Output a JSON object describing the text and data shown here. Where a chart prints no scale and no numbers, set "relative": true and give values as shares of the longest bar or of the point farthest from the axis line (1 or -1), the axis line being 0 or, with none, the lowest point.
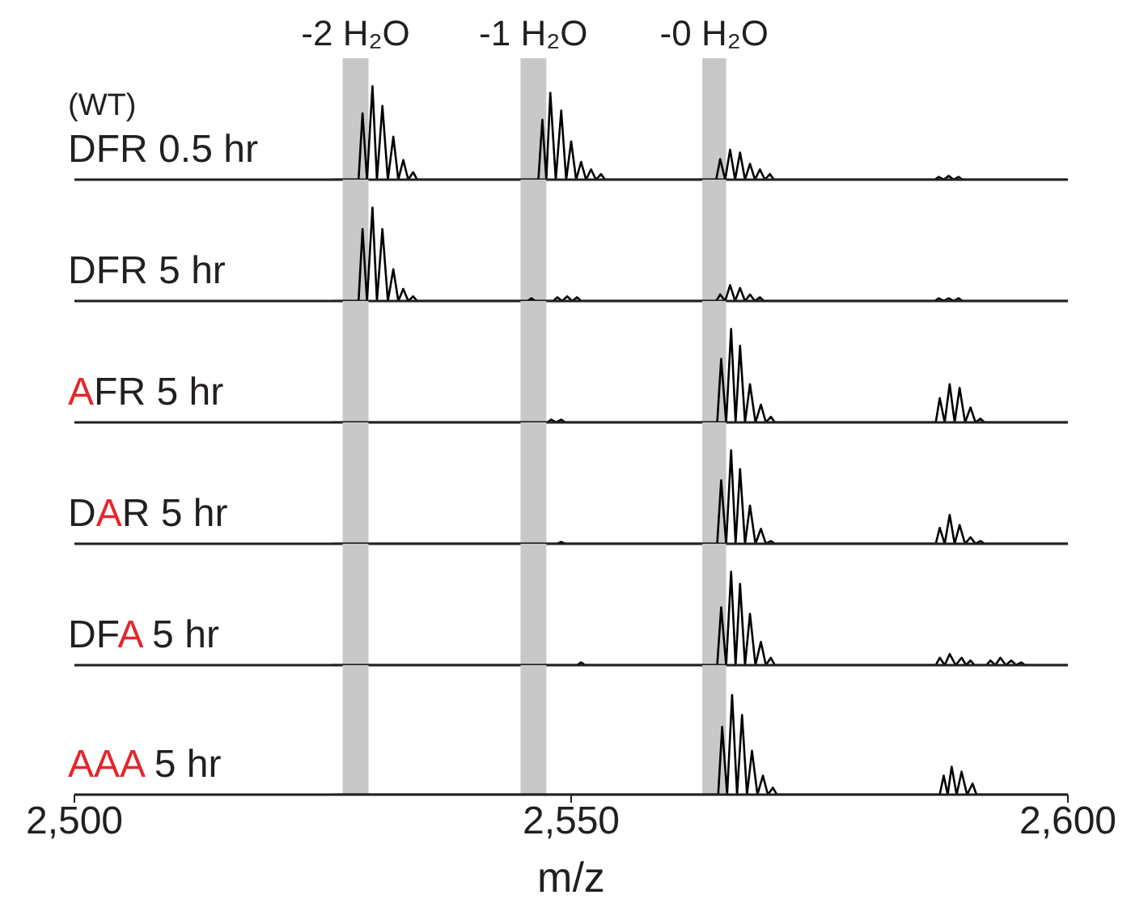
{
  "chart_data": [
    {
      "type": "line",
      "title": "DFR 0.5 hr",
      "annotations": [
        "(WT)"
      ],
      "relative": true,
      "xlim": [
        2500,
        2600
      ],
      "xticks": [
        {
          "value": 2500,
          "label": null
        },
        {
          "value": 2550,
          "label": null
        },
        {
          "value": 2600,
          "label": null
        }
      ],
      "tick_labels": false,
      "bands": [
        {
          "axis": "x",
          "from": 2527,
          "to": 2529.6,
          "label": "-2 H₂O",
          "color": "#c8c8c8"
        },
        {
          "axis": "x",
          "from": 2544.9,
          "to": 2547.5,
          "label": "-1 H₂O",
          "color": "#c8c8c8"
        },
        {
          "axis": "x",
          "from": 2563.2,
          "to": 2565.6,
          "label": "-0 H₂O",
          "color": "#c8c8c8"
        }
      ],
      "series": [
        {
          "color": "#000000",
          "x": [
            2526,
            2528.6,
            2529,
            2529.45,
            2530,
            2530.45,
            2531,
            2531.55,
            2532.1,
            2532.6,
            2533.1,
            2533.6,
            2534.1,
            2534.5,
            2546.7,
            2547.1,
            2547.5,
            2547.9,
            2548.45,
            2549,
            2549.5,
            2550,
            2550.5,
            2551,
            2551.5,
            2552,
            2552.5,
            2553,
            2553.4,
            2564.6,
            2565,
            2565.5,
            2566,
            2566.5,
            2567,
            2567.5,
            2568,
            2568.5,
            2569,
            2569.5,
            2570,
            2570.4,
            2586.6,
            2587,
            2587.5,
            2588,
            2588.5,
            2589,
            2589.4,
            2600
          ],
          "values": [
            0,
            0,
            0.71,
            0,
            1,
            0,
            0.79,
            0,
            0.46,
            0,
            0.21,
            0,
            0.08,
            0,
            0,
            0.64,
            0,
            0.93,
            0,
            0.74,
            0,
            0.41,
            0,
            0.19,
            0,
            0.11,
            0,
            0.06,
            0,
            0,
            0.22,
            0,
            0.32,
            0,
            0.29,
            0,
            0.17,
            0,
            0.11,
            0,
            0.06,
            0,
            0,
            0.03,
            0,
            0.04,
            0,
            0.03,
            0,
            0
          ]
        }
      ]
    },
    {
      "type": "line",
      "title": "DFR 5 hr",
      "relative": true,
      "xlim": [
        2500,
        2600
      ],
      "xticks": [
        {
          "value": 2500,
          "label": null
        },
        {
          "value": 2550,
          "label": null
        },
        {
          "value": 2600,
          "label": null
        }
      ],
      "tick_labels": false,
      "bands": [
        {
          "axis": "x",
          "from": 2527,
          "to": 2529.6,
          "color": "#c8c8c8"
        },
        {
          "axis": "x",
          "from": 2544.9,
          "to": 2547.5,
          "color": "#c8c8c8"
        },
        {
          "axis": "x",
          "from": 2563.2,
          "to": 2565.6,
          "color": "#c8c8c8"
        }
      ],
      "series": [
        {
          "color": "#000000",
          "x": [
            2526,
            2528.6,
            2529,
            2529.45,
            2530,
            2530.45,
            2531,
            2531.55,
            2532.1,
            2532.6,
            2533.1,
            2533.6,
            2534.1,
            2534.5,
            2545.6,
            2546,
            2546.4,
            2548.2,
            2548.6,
            2549.1,
            2549.6,
            2550.1,
            2550.6,
            2551,
            2564.6,
            2565,
            2565.5,
            2566,
            2566.5,
            2567,
            2567.5,
            2568,
            2568.5,
            2569,
            2569.4,
            2586.6,
            2587,
            2587.5,
            2588,
            2588.5,
            2589,
            2589.4,
            2600
          ],
          "values": [
            0,
            0,
            0.77,
            0,
            1,
            0,
            0.77,
            0,
            0.34,
            0,
            0.13,
            0,
            0.05,
            0,
            0,
            0.03,
            0,
            0,
            0.04,
            0,
            0.05,
            0,
            0.04,
            0,
            0,
            0.07,
            0,
            0.17,
            0,
            0.14,
            0,
            0.07,
            0,
            0.04,
            0,
            0,
            0.03,
            0,
            0.03,
            0,
            0.03,
            0,
            0
          ]
        }
      ]
    },
    {
      "type": "line",
      "title": "AFR 5 hr",
      "relative": true,
      "xlim": [
        2500,
        2600
      ],
      "xticks": [
        {
          "value": 2500,
          "label": null
        },
        {
          "value": 2550,
          "label": null
        },
        {
          "value": 2600,
          "label": null
        }
      ],
      "tick_labels": false,
      "bands": [
        {
          "axis": "x",
          "from": 2527,
          "to": 2529.6,
          "color": "#c8c8c8"
        },
        {
          "axis": "x",
          "from": 2544.9,
          "to": 2547.5,
          "color": "#c8c8c8"
        },
        {
          "axis": "x",
          "from": 2563.2,
          "to": 2565.6,
          "color": "#c8c8c8"
        }
      ],
      "series": [
        {
          "color": "#000000",
          "x": [
            2526,
            2547.6,
            2548,
            2548.5,
            2549,
            2549.4,
            2564.7,
            2565.1,
            2565.6,
            2566.1,
            2566.55,
            2567,
            2567.5,
            2568,
            2568.55,
            2569.1,
            2569.6,
            2570.1,
            2570.5,
            2586.7,
            2587.1,
            2587.6,
            2588.1,
            2588.6,
            2589.1,
            2589.65,
            2590.2,
            2590.7,
            2591.2,
            2591.6,
            2600
          ],
          "values": [
            0,
            0,
            0.03,
            0,
            0.03,
            0,
            0,
            0.68,
            0,
            1,
            0,
            0.82,
            0,
            0.41,
            0,
            0.19,
            0,
            0.06,
            0,
            0,
            0.26,
            0,
            0.41,
            0,
            0.37,
            0,
            0.16,
            0,
            0.04,
            0,
            0
          ]
        }
      ]
    },
    {
      "type": "line",
      "title": "DAR 5 hr",
      "relative": true,
      "xlim": [
        2500,
        2600
      ],
      "xticks": [
        {
          "value": 2500,
          "label": null
        },
        {
          "value": 2550,
          "label": null
        },
        {
          "value": 2600,
          "label": null
        }
      ],
      "tick_labels": false,
      "bands": [
        {
          "axis": "x",
          "from": 2527,
          "to": 2529.6,
          "color": "#c8c8c8"
        },
        {
          "axis": "x",
          "from": 2544.9,
          "to": 2547.5,
          "color": "#c8c8c8"
        },
        {
          "axis": "x",
          "from": 2563.2,
          "to": 2565.6,
          "color": "#c8c8c8"
        }
      ],
      "series": [
        {
          "color": "#000000",
          "x": [
            2526,
            2548.6,
            2549,
            2549.4,
            2564.7,
            2565.1,
            2565.6,
            2566.1,
            2566.55,
            2567,
            2567.5,
            2568,
            2568.55,
            2569.1,
            2569.6,
            2570.1,
            2570.5,
            2586.7,
            2587.1,
            2587.6,
            2588.1,
            2588.6,
            2589.1,
            2589.65,
            2590.2,
            2590.7,
            2591.2,
            2591.6,
            2600
          ],
          "values": [
            0,
            0,
            0.02,
            0,
            0,
            0.68,
            0,
            1,
            0,
            0.8,
            0,
            0.41,
            0,
            0.16,
            0,
            0.03,
            0,
            0,
            0.17,
            0,
            0.31,
            0,
            0.2,
            0,
            0.07,
            0,
            0.03,
            0,
            0
          ]
        }
      ]
    },
    {
      "type": "line",
      "title": "DFA 5 hr",
      "relative": true,
      "xlim": [
        2500,
        2600
      ],
      "xticks": [
        {
          "value": 2500,
          "label": null
        },
        {
          "value": 2550,
          "label": null
        },
        {
          "value": 2600,
          "label": null
        }
      ],
      "tick_labels": false,
      "bands": [
        {
          "axis": "x",
          "from": 2527,
          "to": 2529.6,
          "color": "#c8c8c8"
        },
        {
          "axis": "x",
          "from": 2544.9,
          "to": 2547.5,
          "color": "#c8c8c8"
        },
        {
          "axis": "x",
          "from": 2563.2,
          "to": 2565.6,
          "color": "#c8c8c8"
        }
      ],
      "series": [
        {
          "color": "#000000",
          "x": [
            2526,
            2550.6,
            2551,
            2551.4,
            2564.7,
            2565.1,
            2565.6,
            2566.1,
            2566.55,
            2567,
            2567.5,
            2568,
            2568.55,
            2569.1,
            2569.6,
            2570.1,
            2570.5,
            2586.7,
            2587.1,
            2587.6,
            2588.1,
            2588.7,
            2589.3,
            2589.75,
            2590.2,
            2590.6,
            2591.8,
            2592.2,
            2592.7,
            2593.2,
            2593.75,
            2594.3,
            2594.8,
            2595.3,
            2595.7,
            2600
          ],
          "values": [
            0,
            0,
            0.03,
            0,
            0,
            0.62,
            0,
            1,
            0,
            0.87,
            0,
            0.55,
            0,
            0.25,
            0,
            0.08,
            0,
            0,
            0.08,
            0,
            0.12,
            0,
            0.08,
            0,
            0.05,
            0,
            0,
            0.05,
            0,
            0.08,
            0,
            0.05,
            0,
            0.03,
            0,
            0
          ]
        }
      ]
    },
    {
      "type": "line",
      "title": "AAA 5 hr",
      "xlabel": "m/z",
      "relative": true,
      "xlim": [
        2500,
        2600
      ],
      "xticks": [
        {
          "value": 2500,
          "label": "2,500"
        },
        {
          "value": 2550,
          "label": "2,550"
        },
        {
          "value": 2600,
          "label": "2,600"
        }
      ],
      "tick_labels": "x",
      "bands": [
        {
          "axis": "x",
          "from": 2527,
          "to": 2529.6,
          "color": "#c8c8c8"
        },
        {
          "axis": "x",
          "from": 2544.9,
          "to": 2547.5,
          "color": "#c8c8c8"
        },
        {
          "axis": "x",
          "from": 2563.2,
          "to": 2565.6,
          "color": "#c8c8c8"
        }
      ],
      "series": [
        {
          "color": "#000000",
          "x": [
            2526,
            2564.8,
            2565.2,
            2565.7,
            2566.2,
            2566.7,
            2567.2,
            2567.7,
            2568.2,
            2568.75,
            2569.3,
            2569.8,
            2570.3,
            2570.7,
            2587.1,
            2587.5,
            2587.9,
            2588.3,
            2588.8,
            2589.3,
            2589.85,
            2590.4,
            2590.8,
            2600
          ],
          "values": [
            0,
            0,
            0.68,
            0,
            1,
            0,
            0.8,
            0,
            0.44,
            0,
            0.19,
            0,
            0.07,
            0,
            0,
            0.19,
            0,
            0.28,
            0,
            0.23,
            0,
            0.11,
            0,
            0
          ]
        }
      ]
    }
  ]
}
